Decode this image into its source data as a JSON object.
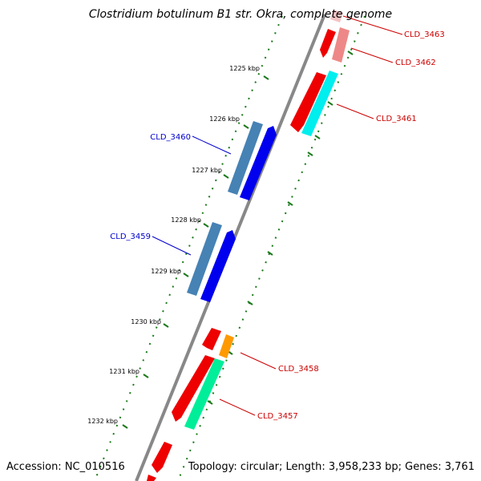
{
  "title": "Clostridium botulinum B1 str. Okra, complete genome",
  "footer": {
    "accession": "Accession: NC_010516",
    "summary": "Topology: circular; Length: 3,958,233 bp; Genes: 3,761"
  },
  "kbp_ticks": [
    "1225 kbp",
    "1226 kbp",
    "1227 kbp",
    "1228 kbp",
    "1229 kbp",
    "1230 kbp",
    "1231 kbp",
    "1232 kbp"
  ],
  "gene_labels": {
    "cld_3463": "CLD_3463",
    "cld_3462": "CLD_3462",
    "cld_3461": "CLD_3461",
    "cld_3460": "CLD_3460",
    "cld_3459": "CLD_3459",
    "cld_3458": "CLD_3458",
    "cld_3457": "CLD_3457"
  },
  "colors": {
    "forward_label": "#cc0000",
    "reverse_label": "#0000cc",
    "red_gene": "#ee0000",
    "pink_gene": "#ee8888",
    "cyan_gene": "#00eeee",
    "blue_gene": "#0000ee",
    "steel_gene": "#4682b4",
    "orange_gene": "#ff9900",
    "green_gene": "#00ee99",
    "backbone": "#888888",
    "tick": "#1a7a1a"
  }
}
